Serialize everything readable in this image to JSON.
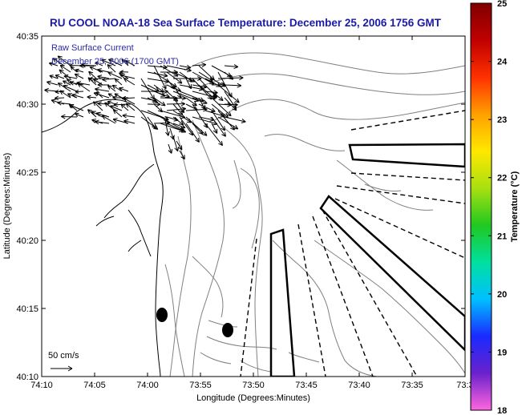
{
  "title": "RU COOL  NOAA-18  Sea Surface Temperature:  December 25, 2006 1756 GMT",
  "legend": {
    "line1": "Raw Surface Current",
    "line2": "December 25, 2006 (1700 GMT)"
  },
  "axes": {
    "xlabel": "Longitude (Degrees:Minutes)",
    "ylabel": "Latitude (Degrees:Minutes)",
    "xticks": [
      "74:10",
      "74:05",
      "74:00",
      "73:55",
      "73:50",
      "73:45",
      "73:40",
      "73:35",
      "73:3"
    ],
    "yticks": [
      "40:35",
      "40:30",
      "40:25",
      "40:20",
      "40:15",
      "40:10"
    ],
    "lon_range": [
      -74.1667,
      -73.5
    ],
    "lat_range": [
      40.1667,
      40.5833
    ]
  },
  "colorbar": {
    "label": "Temperature (°C)",
    "ticks": [
      "25",
      "24",
      "23",
      "22",
      "21",
      "20",
      "19",
      "18"
    ],
    "range": [
      18,
      25
    ],
    "colors": [
      "#ff66dd",
      "#6a22cc",
      "#1a2aff",
      "#00c0ff",
      "#00e0a0",
      "#20c820",
      "#a8e010",
      "#ffe800",
      "#ffa000",
      "#ff3000",
      "#c00000",
      "#800000"
    ]
  },
  "scale_vector": {
    "label": "50 cm/s"
  },
  "colors": {
    "title": "#1a1aa8",
    "legend_text": "#2a2aa8",
    "vectors": "#000000",
    "coastline": "#000000",
    "bathymetry": "#808080"
  }
}
